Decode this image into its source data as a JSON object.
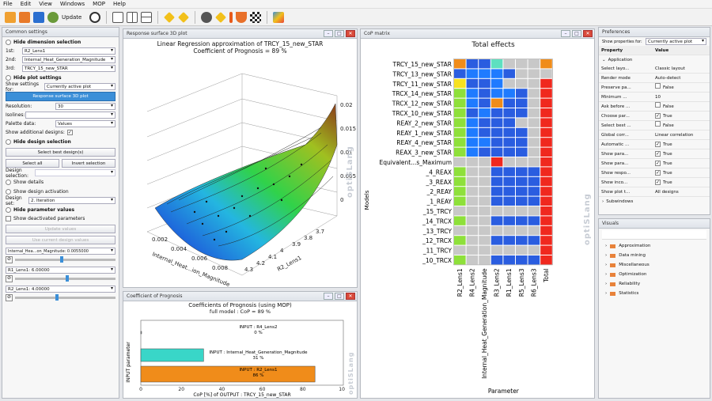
{
  "menu": [
    "File",
    "Edit",
    "View",
    "Windows",
    "MOP",
    "Help"
  ],
  "toolbar": {
    "update_label": "Update"
  },
  "left": {
    "title": "Common settings",
    "dim_section": "Hide dimension selection",
    "dim1_label": "1st:",
    "dim1_value": "R2_Lens1",
    "dim2_label": "2nd:",
    "dim2_value": "Internal_Heat_Generation_Magnitude",
    "dim3_label": "3rd:",
    "dim3_value": "TRCY_15_new_STAR",
    "plot_section": "Hide plot settings",
    "show_settings_label": "Show settings for:",
    "show_settings_value": "Currently active plot",
    "surface_btn": "Response surface 3D plot",
    "resolution_label": "Resolution:",
    "resolution_value": "30",
    "isolines_label": "Isolines:",
    "palette_label": "Palette data:",
    "palette_value": "Values",
    "show_additional_label": "Show additional designs:",
    "design_section": "Hide design selection",
    "select_best_btn": "Select best design(s)",
    "select_all_btn": "Select all",
    "invert_btn": "Invert selection",
    "design_selection_label": "Design selection:",
    "show_details": "Show details",
    "show_activation": "Show design activation",
    "design_set_label": "Design set:",
    "design_set_value": "2. Iteration",
    "param_section": "Hide parameter values",
    "show_deactivated": "Show deactivated parameters",
    "update_values_btn": "Update values",
    "use_current_btn": "Use current design values",
    "p1_label": "Internal_Hea...on_Magnitude: 0.0055000",
    "p2_label": "R1_Lens1: 6.00000",
    "p3_label": "R2_Lens1: 4.00000"
  },
  "surface": {
    "win_title": "Response surface 3D plot",
    "title1": "Linear Regression  approximation of TRCY_15_new_STAR",
    "title2": "Coefficient of Prognosis = 89 %",
    "zticks": [
      "0.02",
      "0.015",
      "0.01",
      "0.005",
      "0"
    ],
    "xticks": [
      "0.002",
      "0.004",
      "0.006",
      "0.008"
    ],
    "xlabel": "Internal_Heat...ion_Magnitude",
    "yticks": [
      "4.3",
      "4.2",
      "4.1",
      "4",
      "3.9",
      "3.8",
      "3.7"
    ],
    "ylabel": "R2_Lens1",
    "watermark": "optiSLang"
  },
  "cop": {
    "win_title": "Coefficient of Prognosis",
    "title1": "Coefficients of Prognosis (using MOP)",
    "title2": "full model : CoP = 89 %",
    "ylabel": "INPUT parameter",
    "xlabel": "CoP [%] of OUTPUT : TRCY_15_new_STAR",
    "xticks": [
      "0",
      "20",
      "40",
      "60",
      "80",
      "100"
    ],
    "watermark": "optiSLang"
  },
  "chart_data": {
    "type": "bar",
    "title": "Coefficients of Prognosis (using MOP)",
    "subtitle": "full model : CoP = 89 %",
    "xlabel": "CoP [%] of OUTPUT : TRCY_15_new_STAR",
    "ylabel": "INPUT parameter",
    "xlim": [
      0,
      100
    ],
    "categories": [
      "INPUT : R4_Lens2",
      "INPUT : Internal_Heat_Generation_Magnitude",
      "INPUT : R2_Lens1"
    ],
    "values": [
      0,
      31,
      86
    ],
    "value_labels": [
      "0 %",
      "31 %",
      "86 %"
    ],
    "colors": [
      "#9aa0a6",
      "#39d6c8",
      "#f08c1a"
    ]
  },
  "matrix": {
    "win_title": "CoP matrix",
    "title": "Total effects",
    "ylabel": "Models",
    "xlabel": "Parameter",
    "watermark": "optiSLang",
    "rows": [
      "TRCY_15_new_STAR",
      "TRCY_13_new_STAR",
      "TRCY_11_new_STAR",
      "TRCX_14_new_STAR",
      "TRCX_12_new_STAR",
      "TRCX_10_new_STAR",
      "REAY_2_new_STAR",
      "REAY_1_new_STAR",
      "REAY_4_new_STAR",
      "REAX_3_new_STAR",
      "Equivalent...s_Maximum",
      "_4_REAX",
      "_3_REAX",
      "_2_REAY",
      "_1_REAY",
      "_15_TRCY",
      "_14_TRCX",
      "_13_TRCY",
      "_12_TRCX",
      "_11_TRCY",
      "_10_TRCX"
    ],
    "cols": [
      "R2_Lens1",
      "R4_Lens2",
      "Internal_Heat_Generation_Magnitude",
      "R3_Lens2",
      "R1_Lens1",
      "R5_Lens3",
      "R6_Lens3",
      "Total"
    ],
    "cells": [
      "O",
      "B",
      "B",
      "T",
      "G",
      "G",
      "G",
      "O",
      "B",
      "W",
      "W",
      "W",
      "B",
      "G",
      "G",
      "G",
      "Y",
      "B",
      "B",
      "W",
      "G",
      "G",
      "G",
      "R",
      "L",
      "W",
      "B",
      "W",
      "W",
      "B",
      "G",
      "R",
      "L",
      "W",
      "B",
      "O",
      "B",
      "B",
      "G",
      "R",
      "L",
      "B",
      "W",
      "B",
      "B",
      "B",
      "G",
      "R",
      "L",
      "W",
      "B",
      "B",
      "B",
      "G",
      "G",
      "R",
      "L",
      "W",
      "B",
      "B",
      "B",
      "B",
      "G",
      "R",
      "L",
      "W",
      "W",
      "B",
      "B",
      "B",
      "G",
      "R",
      "L",
      "W",
      "B",
      "B",
      "B",
      "B",
      "G",
      "R",
      "G",
      "G",
      "G",
      "R",
      "G",
      "G",
      "G",
      "R",
      "L",
      "G",
      "G",
      "B",
      "B",
      "B",
      "B",
      "R",
      "L",
      "G",
      "G",
      "B",
      "B",
      "B",
      "B",
      "R",
      "L",
      "G",
      "G",
      "B",
      "B",
      "B",
      "B",
      "R",
      "L",
      "G",
      "G",
      "B",
      "B",
      "B",
      "B",
      "R",
      "G",
      "G",
      "G",
      "G",
      "G",
      "G",
      "G",
      "R",
      "L",
      "G",
      "G",
      "B",
      "B",
      "B",
      "B",
      "R",
      "G",
      "G",
      "G",
      "G",
      "G",
      "G",
      "G",
      "R",
      "L",
      "G",
      "G",
      "B",
      "B",
      "B",
      "B",
      "R",
      "G",
      "G",
      "G",
      "G",
      "G",
      "G",
      "G",
      "R",
      "L",
      "G",
      "G",
      "B",
      "B",
      "B",
      "B",
      "R"
    ],
    "palette": {
      "O": "#f08c1a",
      "B": "#2a5de0",
      "W": "#1f7bff",
      "T": "#5ee0c0",
      "G": "#c8c8c8",
      "Y": "#f7e11e",
      "L": "#8ee03a",
      "R": "#f0281e"
    }
  },
  "prefs": {
    "title": "Preferences",
    "show_props_label": "Show properties for:",
    "show_props_value": "Currently active plot",
    "col_property": "Property",
    "col_value": "Value",
    "group": "Application",
    "items": [
      {
        "k": "Select layo...",
        "v": "Classic layout",
        "c": false
      },
      {
        "k": "Render mode",
        "v": "Auto-detect",
        "c": false
      },
      {
        "k": "Preserve pa...",
        "v": "False",
        "c": true
      },
      {
        "k": "Minimum ...",
        "v": "10",
        "c": false
      },
      {
        "k": "Ask before ...",
        "v": "False",
        "c": true
      },
      {
        "k": "Choose par...",
        "v": "True",
        "c": true
      },
      {
        "k": "Select best ...",
        "v": "False",
        "c": true
      },
      {
        "k": "Global corr...",
        "v": "Linear correlation",
        "c": false
      },
      {
        "k": "Automatic ...",
        "v": "True",
        "c": true
      },
      {
        "k": "Show para...",
        "v": "True",
        "c": true
      },
      {
        "k": "Show para...",
        "v": "True",
        "c": true
      },
      {
        "k": "Show respo...",
        "v": "True",
        "c": true
      },
      {
        "k": "Show inco...",
        "v": "True",
        "c": true
      },
      {
        "k": "Show plot t...",
        "v": "All designs",
        "c": false
      }
    ],
    "subwindows": "Subwindows"
  },
  "visuals": {
    "title": "Visuals",
    "items": [
      "Approximation",
      "Data mining",
      "Miscellaneous",
      "Optimization",
      "Reliability",
      "Statistics"
    ]
  }
}
